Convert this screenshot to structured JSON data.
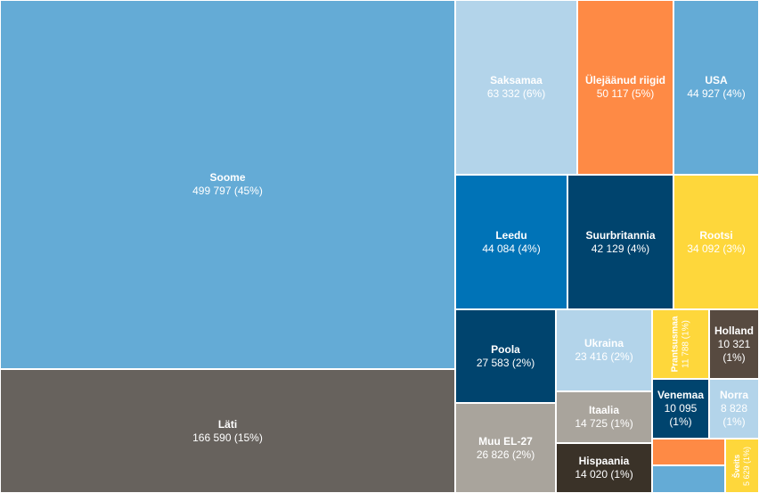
{
  "chart_data": {
    "type": "treemap",
    "items": [
      {
        "name": "Soome",
        "value": 499797,
        "value_text": "499 797 (45%)",
        "color": "#64abd6"
      },
      {
        "name": "Läti",
        "value": 166590,
        "value_text": "166 590 (15%)",
        "color": "#67625d"
      },
      {
        "name": "Saksamaa",
        "value": 63332,
        "value_text": "63 332 (6%)",
        "color": "#b3d4ea"
      },
      {
        "name": "Ülejäänud riigid",
        "value": 50117,
        "value_text": "50 117 (5%)",
        "color": "#fe8a45"
      },
      {
        "name": "USA",
        "value": 44927,
        "value_text": "44 927 (4%)",
        "color": "#64abd6"
      },
      {
        "name": "Leedu",
        "value": 44084,
        "value_text": "44 084 (4%)",
        "color": "#0073b7"
      },
      {
        "name": "Suurbritannia",
        "value": 42129,
        "value_text": "42 129 (4%)",
        "color": "#00446e"
      },
      {
        "name": "Rootsi",
        "value": 34092,
        "value_text": "34 092 (3%)",
        "color": "#fed73b"
      },
      {
        "name": "Poola",
        "value": 27583,
        "value_text": "27 583 (2%)",
        "color": "#00446e"
      },
      {
        "name": "Muu EL-27",
        "value": 26826,
        "value_text": "26 826 (2%)",
        "color": "#a9a49c"
      },
      {
        "name": "Ukraina",
        "value": 23416,
        "value_text": "23 416 (2%)",
        "color": "#b3d4ea"
      },
      {
        "name": "Itaalia",
        "value": 14725,
        "value_text": "14 725 (1%)",
        "color": "#a9a49c"
      },
      {
        "name": "Hispaania",
        "value": 14020,
        "value_text": "14 020 (1%)",
        "color": "#3a3228"
      },
      {
        "name": "Prantsusmaa",
        "value": 11788,
        "value_text": "11 788 (1%)",
        "color": "#fed73b"
      },
      {
        "name": "Holland",
        "value": 10321,
        "value_text": "10 321 (1%)",
        "color": "#574a40"
      },
      {
        "name": "Venemaa",
        "value": 10095,
        "value_text": "10 095 (1%)",
        "color": "#00446e"
      },
      {
        "name": "Norra",
        "value": 8828,
        "value_text": "8 828 (1%)",
        "color": "#b3d4ea"
      },
      {
        "name": "Šveits",
        "value": 5629,
        "value_text": "5 629 (1%)",
        "color": "#fed73b"
      },
      {
        "name": "",
        "value": 5000,
        "value_text": "",
        "color": "#fe8a45"
      },
      {
        "name": "",
        "value": 4500,
        "value_text": "",
        "color": "#64abd6"
      }
    ]
  }
}
